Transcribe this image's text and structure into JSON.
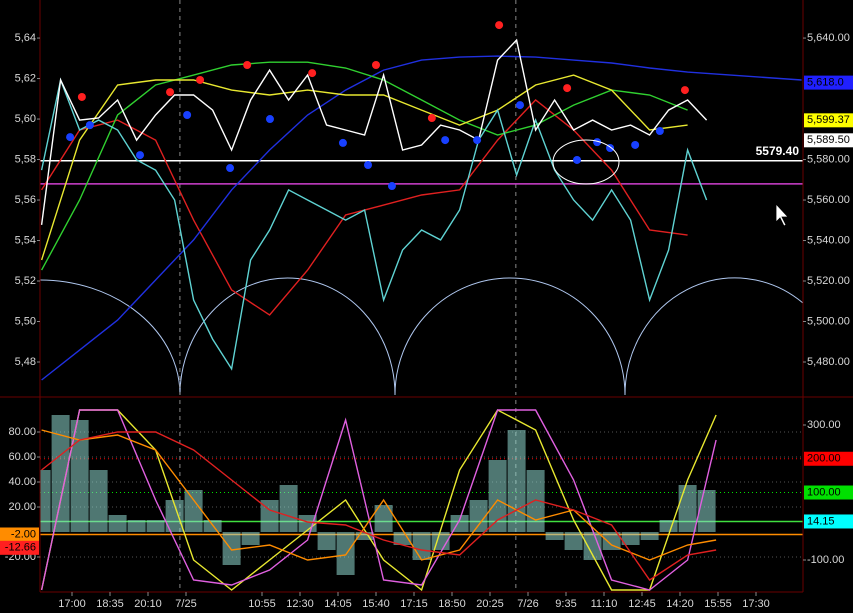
{
  "chart_data": [
    {
      "type": "line",
      "xlim": [
        -0.842,
        19.237
      ],
      "ylim": [
        5463.7,
        5658.8
      ],
      "y2lim": [
        5463.7,
        5658.8
      ],
      "yticks": [
        {
          "value": 5640,
          "label": "5,64"
        },
        {
          "value": 5620,
          "label": "5,62"
        },
        {
          "value": 5600,
          "label": "5,60"
        },
        {
          "value": 5580,
          "label": "5,58"
        },
        {
          "value": 5560,
          "label": "5,56"
        },
        {
          "value": 5540,
          "label": "5,54"
        },
        {
          "value": 5520,
          "label": "5,52"
        },
        {
          "value": 5500,
          "label": "5,50"
        },
        {
          "value": 5480,
          "label": "5,48"
        }
      ],
      "y2ticks": [
        {
          "value": 5640,
          "label": "5,640.00"
        },
        {
          "value": 5580,
          "label": "5,580.00"
        },
        {
          "value": 5560,
          "label": "5,560.00"
        },
        {
          "value": 5540,
          "label": "5,540.00"
        },
        {
          "value": 5520,
          "label": "5,520.00"
        },
        {
          "value": 5500,
          "label": "5,500.00"
        },
        {
          "value": 5480,
          "label": "5,480.00"
        }
      ],
      "vlines": [
        2.84,
        11.68
      ],
      "series": [
        {
          "kind": "line",
          "color": "#e02020",
          "x": [
            -0.8,
            0.2,
            1.2,
            2.2,
            3.2,
            4.2,
            5.2,
            6.2,
            7.2,
            8.2,
            9.2,
            10.2,
            11.2,
            12.2,
            13.2,
            14.2,
            15.2,
            16.2
          ],
          "values": [
            5565,
            5594.6,
            5599.5,
            5589.6,
            5550.1,
            5515.6,
            5503.2,
            5525.4,
            5552.6,
            5557.5,
            5562.5,
            5565,
            5589.6,
            5609.4,
            5594.6,
            5574.8,
            5545.2,
            5542.7
          ]
        },
        {
          "kind": "line",
          "color": "#2030e0",
          "x": [
            -0.8,
            0.2,
            1.2,
            2.2,
            3.2,
            4.2,
            5.2,
            6.2,
            7.2,
            8.2,
            9.2,
            10.2,
            11.2,
            12.2,
            13.2,
            14.2,
            15.2,
            16.2,
            19.2
          ],
          "values": [
            5471.1,
            5485.9,
            5500.7,
            5520.5,
            5540.3,
            5565,
            5584.7,
            5602,
            5614.3,
            5624.2,
            5629.1,
            5630.6,
            5631.1,
            5630.6,
            5629.1,
            5627.7,
            5625.2,
            5623.2,
            5619.3
          ]
        },
        {
          "kind": "line",
          "color": "#30d030",
          "x": [
            -0.8,
            0.2,
            1.2,
            2.2,
            3.2,
            4.2,
            5.2,
            6.2,
            7.2,
            8.2,
            9.2,
            10.2,
            11.2,
            12.2,
            13.2,
            14.2,
            15.2,
            16.2
          ],
          "values": [
            5525.4,
            5560,
            5602,
            5616.8,
            5621.7,
            5626.7,
            5628.1,
            5628.1,
            5625.2,
            5619.3,
            5609.4,
            5599.5,
            5592.1,
            5597,
            5606.9,
            5614.3,
            5611.9,
            5604.4
          ]
        },
        {
          "kind": "line",
          "color": "#e8e830",
          "x": [
            -0.8,
            0.2,
            1.2,
            2.2,
            3.2,
            4.2,
            5.2,
            6.2,
            7.2,
            8.2,
            9.2,
            10.2,
            11.2,
            12.2,
            13.2,
            14.2,
            15.2,
            16.2
          ],
          "values": [
            5530.4,
            5589.6,
            5616.8,
            5619.3,
            5619.3,
            5614.3,
            5611.9,
            5614.3,
            5611.9,
            5611.9,
            5604.4,
            5597,
            5604.4,
            5616.8,
            5621.7,
            5614.3,
            5594.6,
            5597
          ]
        },
        {
          "kind": "line",
          "color": "#5fd3d3",
          "x": [
            -0.8,
            -0.3,
            0.2,
            0.7,
            1.2,
            1.7,
            2.2,
            2.7,
            3.2,
            3.7,
            4.2,
            4.7,
            5.2,
            5.7,
            6.2,
            6.7,
            7.2,
            7.7,
            8.2,
            8.7,
            9.2,
            9.7,
            10.2,
            10.7,
            11.2,
            11.7,
            12.2,
            12.7,
            13.2,
            13.7,
            14.2,
            14.7,
            15.2,
            15.7,
            16.2,
            16.7
          ],
          "values": [
            5574.8,
            5619.3,
            5594.6,
            5599.5,
            5594.6,
            5579.8,
            5574.8,
            5560,
            5510.6,
            5491.3,
            5476.6,
            5530.4,
            5545.2,
            5565,
            5560,
            5555.1,
            5550.1,
            5555.1,
            5510.6,
            5535.3,
            5545.2,
            5540.3,
            5555.1,
            5589.6,
            5604.4,
            5572.3,
            5599.5,
            5574.8,
            5560,
            5550.1,
            5565,
            5550.1,
            5510.6,
            5535.3,
            5584.7,
            5560
          ]
        },
        {
          "kind": "line",
          "color": "#ffffff",
          "x": [
            -0.8,
            -0.3,
            0.2,
            0.7,
            1.2,
            1.7,
            2.2,
            2.7,
            3.2,
            3.7,
            4.2,
            4.7,
            5.2,
            5.7,
            6.2,
            6.7,
            7.2,
            7.7,
            8.2,
            8.7,
            9.2,
            9.7,
            10.2,
            10.7,
            11.2,
            11.7,
            12.2,
            12.7,
            13.2,
            13.7,
            14.2,
            14.7,
            15.2,
            15.7,
            16.2,
            16.7
          ],
          "values": [
            5547.7,
            5619.3,
            5599.5,
            5600.5,
            5609.4,
            5589.6,
            5602,
            5611.9,
            5611.9,
            5604.4,
            5584.7,
            5609.4,
            5624.2,
            5609.4,
            5621.7,
            5597,
            5594.6,
            5592.1,
            5621.7,
            5584.7,
            5587.2,
            5597,
            5594.6,
            5589.6,
            5629.1,
            5639,
            5594.6,
            5609.4,
            5594.6,
            5599.5,
            5594.6,
            5597,
            5592.1,
            5604.4,
            5609.4,
            5599.5
          ]
        },
        {
          "kind": "scatter",
          "color": "#ff2020",
          "x": [
            0.26,
            2.58,
            3.37,
            4.61,
            6.32,
            8.0,
            9.47,
            11.24,
            13.03,
            16.13
          ],
          "values": [
            5610.9,
            5613.3,
            5619.3,
            5626.7,
            5622.7,
            5626.7,
            5600.5,
            5646.4,
            5615.3,
            5614.3
          ]
        },
        {
          "kind": "scatter",
          "color": "#1840ff",
          "x": [
            -0.05,
            0.47,
            1.79,
            3.03,
            4.16,
            5.21,
            7.13,
            7.79,
            8.42,
            9.82,
            10.66,
            11.79,
            13.29,
            13.82,
            14.16,
            14.82,
            15.47
          ],
          "values": [
            5591.1,
            5597,
            5582.2,
            5602,
            5575.8,
            5600,
            5588.2,
            5577.3,
            5566.9,
            5589.6,
            5589.6,
            5606.9,
            5579.8,
            5588.6,
            5585.7,
            5587.2,
            5594.1
          ]
        }
      ],
      "markers": [
        {
          "value": 5579.4,
          "label": "5579.40",
          "axis": "y2",
          "color": "#ffffff",
          "box": false,
          "line": "solid"
        },
        {
          "value": 5568,
          "axis": "y2",
          "color": "#d040d0",
          "box": false,
          "line": "solid"
        },
        {
          "value": 5618,
          "label": "5,618.0",
          "axis": "y2",
          "color": "#2020ff",
          "box": true,
          "line": "none"
        },
        {
          "value": 5599.37,
          "label": "5,599.37",
          "axis": "y2",
          "color": "#ffff00",
          "box": true,
          "line": "none"
        },
        {
          "value": 5589.5,
          "label": "5,589.50",
          "axis": "y2",
          "color": "#ffffff",
          "box": true,
          "line": "none"
        }
      ]
    },
    {
      "type": "line",
      "xlim": [
        -0.842,
        19.237
      ],
      "ylim": [
        -48,
        105.6
      ],
      "y2lim": [
        -194.8,
        374.1
      ],
      "yticks": [
        {
          "value": 80,
          "label": "80.00"
        },
        {
          "value": 60,
          "label": "60.00"
        },
        {
          "value": 40,
          "label": "40.00"
        },
        {
          "value": 20,
          "label": "20.00"
        },
        {
          "value": -20,
          "label": "-20.00"
        }
      ],
      "y2ticks": [
        {
          "value": 300,
          "label": "300.00"
        },
        {
          "value": -100,
          "label": "-100.00"
        }
      ],
      "grid": true,
      "vlines": [
        2.84,
        11.68
      ],
      "xticks": [
        {
          "value": 0,
          "label": "17:00"
        },
        {
          "value": 1,
          "label": "18:35"
        },
        {
          "value": 2,
          "label": "20:10"
        },
        {
          "value": 3,
          "label": "7/25"
        },
        {
          "value": 5,
          "label": "10:55"
        },
        {
          "value": 6,
          "label": "12:30"
        },
        {
          "value": 7,
          "label": "14:05"
        },
        {
          "value": 8,
          "label": "15:40"
        },
        {
          "value": 9,
          "label": "17:15"
        },
        {
          "value": 10,
          "label": "18:50"
        },
        {
          "value": 11,
          "label": "20:25"
        },
        {
          "value": 12,
          "label": "7/26"
        },
        {
          "value": 13,
          "label": "9:35"
        },
        {
          "value": 14,
          "label": "11:10"
        },
        {
          "value": 15,
          "label": "12:45"
        },
        {
          "value": 16,
          "label": "14:20"
        },
        {
          "value": 17,
          "label": "15:55"
        },
        {
          "value": 18,
          "label": "17:30"
        }
      ],
      "series": [
        {
          "kind": "bars",
          "color": "#8fd8d0",
          "x": [
            -0.8,
            -0.3,
            0.2,
            0.7,
            1.2,
            1.7,
            2.2,
            2.7,
            3.2,
            3.7,
            4.2,
            4.7,
            5.2,
            5.7,
            6.2,
            6.7,
            7.2,
            7.7,
            8.2,
            8.7,
            9.2,
            9.7,
            10.2,
            10.7,
            11.2,
            11.7,
            12.2,
            12.7,
            13.2,
            13.7,
            14.2,
            14.7,
            15.2,
            15.7,
            16.2,
            16.7
          ],
          "values": [
            49.6,
            93.6,
            89.6,
            49.6,
            13.6,
            9.6,
            9.6,
            25.6,
            33.6,
            9.6,
            -26.4,
            -10.4,
            25.6,
            37.6,
            13.6,
            -14.4,
            -34.4,
            -6.4,
            21.6,
            -10.4,
            -22.4,
            -14.4,
            13.6,
            25.6,
            57.6,
            81.6,
            49.6,
            -6.4,
            -14.4,
            -22.4,
            -14.4,
            -10.4,
            -6.4,
            9.6,
            37.6,
            33.6
          ]
        },
        {
          "kind": "line",
          "color": "#e8e830",
          "x": [
            -0.8,
            0.2,
            1.2,
            2.2,
            3.2,
            4.2,
            5.2,
            6.2,
            7.2,
            8.2,
            9.2,
            10.2,
            11.2,
            12.2,
            13.2,
            14.2,
            15.2,
            16.2,
            16.95
          ],
          "values": [
            -46.4,
            97.6,
            97.6,
            65.6,
            -22.4,
            -46.4,
            -22.4,
            1.6,
            25.6,
            -22.4,
            -46.4,
            49.6,
            97.6,
            81.6,
            9.6,
            -46.4,
            -46.4,
            41.6,
            93.6
          ]
        },
        {
          "kind": "line",
          "color": "#e060e0",
          "x": [
            -0.8,
            0.2,
            1.2,
            2.2,
            3.2,
            4.2,
            5.2,
            6.2,
            7.2,
            8.2,
            9.2,
            10.2,
            11.2,
            12.2,
            13.2,
            14.2,
            15.2,
            16.2,
            16.95
          ],
          "values": [
            -46.4,
            97.6,
            97.6,
            25.6,
            -38.4,
            -42.4,
            -30.4,
            -6.4,
            89.6,
            -38.4,
            -42.4,
            9.6,
            97.6,
            97.6,
            41.6,
            -38.4,
            -46.4,
            -22.4,
            73.6
          ]
        },
        {
          "kind": "line",
          "color": "#ff8c00",
          "x": [
            -0.8,
            0.2,
            1.2,
            2.2,
            3.2,
            4.2,
            5.2,
            6.2,
            7.2,
            8.2,
            9.2,
            10.2,
            11.2,
            12.2,
            13.2,
            14.2,
            15.2,
            16.2,
            16.95
          ],
          "values": [
            81.6,
            73.6,
            77.6,
            65.6,
            25.6,
            -14.4,
            -10.4,
            -22.4,
            -18.4,
            25.6,
            -22.4,
            -14.4,
            25.6,
            9.6,
            17.6,
            -10.4,
            -22.4,
            -10.4,
            -6.4
          ]
        },
        {
          "kind": "line",
          "color": "#e02020",
          "x": [
            -0.8,
            0.2,
            1.2,
            2.2,
            3.2,
            4.2,
            5.2,
            6.2,
            7.2,
            8.2,
            9.2,
            10.2,
            11.2,
            12.2,
            13.2,
            14.2,
            15.2,
            16.2,
            16.95
          ],
          "values": [
            49.6,
            73.6,
            80,
            80,
            65.6,
            41.6,
            17.6,
            8,
            5.6,
            -6.4,
            -14.4,
            -18.4,
            9.6,
            25.6,
            17.6,
            5.6,
            -38.4,
            -18.4,
            -14.4
          ]
        }
      ],
      "markers": [
        {
          "value": 200,
          "label": "200.00",
          "axis": "y2",
          "color": "#ff0000",
          "box": true,
          "line": "dotted"
        },
        {
          "value": 100,
          "label": "100.00",
          "axis": "y2",
          "color": "#00e000",
          "box": true,
          "line": "dotted"
        },
        {
          "value": 14.15,
          "label": "14.15",
          "axis": "y2",
          "color": "#00ffff",
          "line_color": "#40e040",
          "box": true,
          "line": "solid"
        },
        {
          "value": -2,
          "label": "-2.00",
          "axis": "y",
          "color": "#ff8c00",
          "box": true,
          "line": "solid"
        },
        {
          "value": -12.66,
          "label": "-12.66",
          "axis": "y",
          "color": "#ff2020",
          "box": true,
          "line": "none"
        }
      ]
    }
  ]
}
